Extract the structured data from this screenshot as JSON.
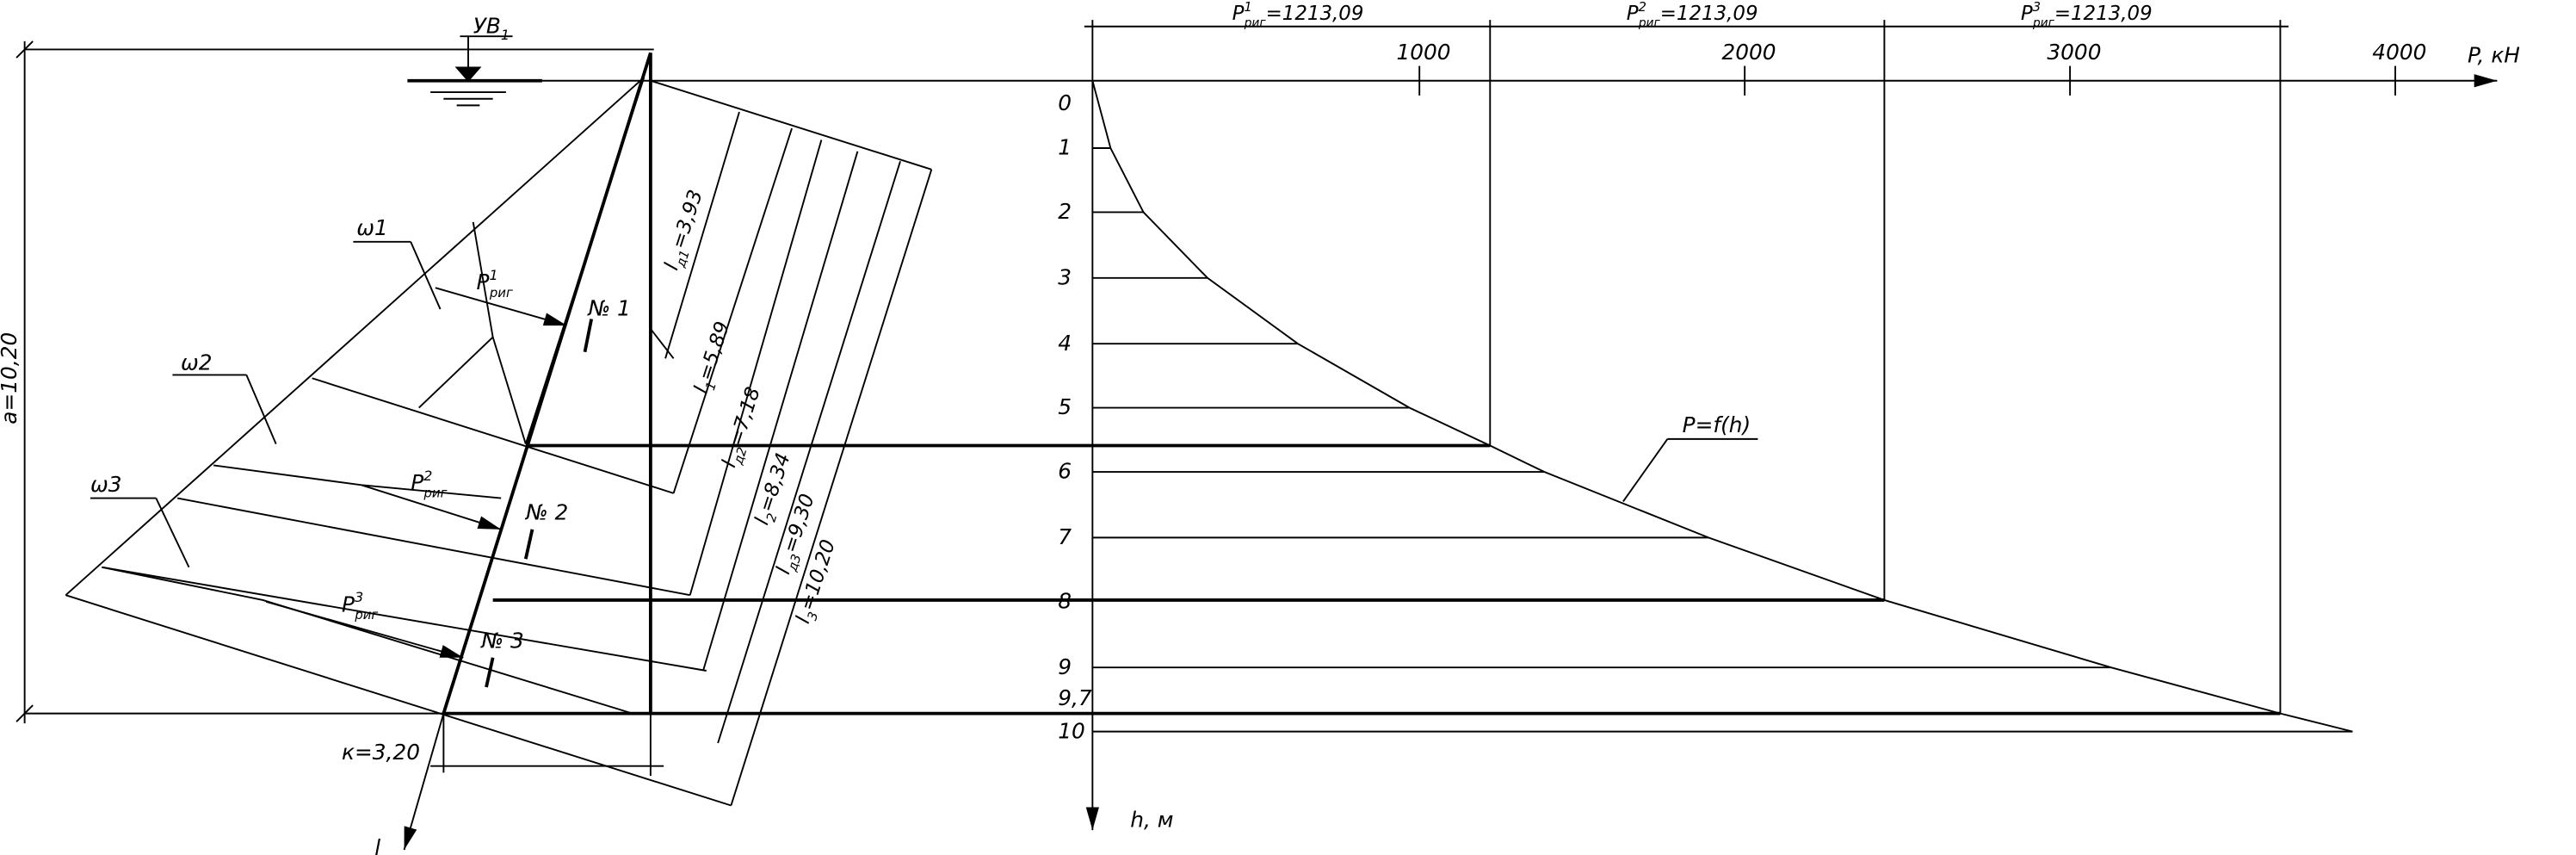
{
  "water_level": {
    "base": "УВ",
    "sub": "1"
  },
  "height_dim": "a=10,20",
  "zones": [
    "ω1",
    "ω2",
    "ω3"
  ],
  "forces": [
    {
      "base": "P",
      "sup": "1",
      "sub": "риг"
    },
    {
      "base": "P",
      "sup": "2",
      "sub": "риг"
    },
    {
      "base": "P",
      "sup": "3",
      "sub": "риг"
    }
  ],
  "sections": [
    "№ 1",
    "№ 2",
    "№ 3"
  ],
  "lengths": [
    {
      "base": "l",
      "sub": "д1",
      "rest": "=3,93"
    },
    {
      "base": "l",
      "sub": "1",
      "rest": "=5,89"
    },
    {
      "base": "l",
      "sub": "д2",
      "rest": "=7,18"
    },
    {
      "base": "l",
      "sub": "2",
      "rest": "=8,34"
    },
    {
      "base": "l",
      "sub": "д3",
      "rest": "=9,30"
    },
    {
      "base": "l",
      "sub": "3",
      "rest": "=10,20"
    }
  ],
  "width_dim": "к=3,20",
  "l_axis": "l",
  "chart": {
    "top_forces": [
      {
        "base": "P",
        "sup": "1",
        "sub": "риг",
        "rest": "=1213,09"
      },
      {
        "base": "P",
        "sup": "2",
        "sub": "риг",
        "rest": "=1213,09"
      },
      {
        "base": "P",
        "sup": "3",
        "sub": "риг",
        "rest": "=1213,09"
      }
    ],
    "p_ticks": [
      "1000",
      "2000",
      "3000",
      "4000"
    ],
    "p_axis": "P, кН",
    "h_ticks": [
      "0",
      "1",
      "2",
      "3",
      "4",
      "5",
      "6",
      "7",
      "8",
      "9",
      "9,7",
      "10"
    ],
    "curve_label": "P=f(h)",
    "h_axis": "h, м"
  }
}
